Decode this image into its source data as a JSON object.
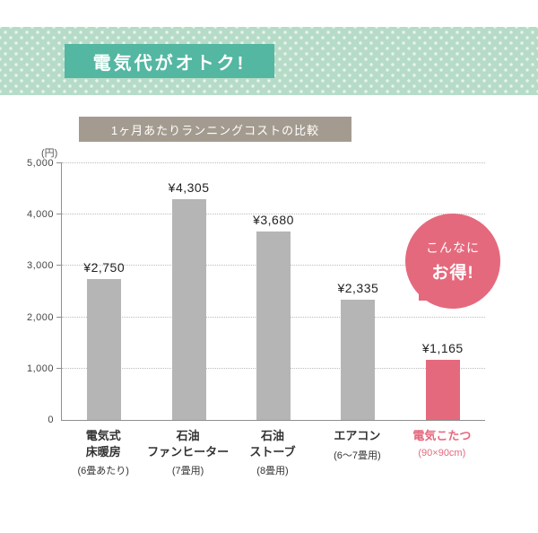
{
  "banner": {
    "title": "電気代がオトク!"
  },
  "chart": {
    "header": "1ヶ月あたりランニングコストの比較",
    "unit_label": "(円)",
    "bubble": {
      "line1": "こんなに",
      "line2": "お得!"
    }
  },
  "colors": {
    "banner_bg": "#b6dcc8",
    "banner_title_bg": "#53b7a2",
    "header_bg": "#a49b90",
    "bar_gray": "#b5b5b5",
    "accent_pink": "#e5697d"
  },
  "chart_data": {
    "type": "bar",
    "title": "1ヶ月あたりランニングコストの比較",
    "ylabel": "円",
    "ylim": [
      0,
      5000
    ],
    "yticks": [
      "0",
      "1,000",
      "2,000",
      "3,000",
      "4,000",
      "5,000"
    ],
    "grid": "dotted horizontal",
    "legend": "none",
    "categories": [
      {
        "lines": [
          "電気式",
          "床暖房"
        ],
        "note": "(6畳あたり)",
        "highlight": false
      },
      {
        "lines": [
          "石油",
          "ファンヒーター"
        ],
        "note": "(7畳用)",
        "highlight": false
      },
      {
        "lines": [
          "石油",
          "ストーブ"
        ],
        "note": "(8畳用)",
        "highlight": false
      },
      {
        "lines": [
          "エアコン"
        ],
        "note": "(6〜7畳用)",
        "highlight": false
      },
      {
        "lines": [
          "電気こたつ"
        ],
        "note": "(90×90cm)",
        "highlight": true
      }
    ],
    "values": [
      2750,
      4305,
      3680,
      2335,
      1165
    ],
    "value_labels": [
      "¥2,750",
      "¥4,305",
      "¥3,680",
      "¥2,335",
      "¥1,165"
    ],
    "bar_color": "#b5b5b5",
    "highlight_color": "#e5697d",
    "annotation": "こんなに お得!"
  }
}
